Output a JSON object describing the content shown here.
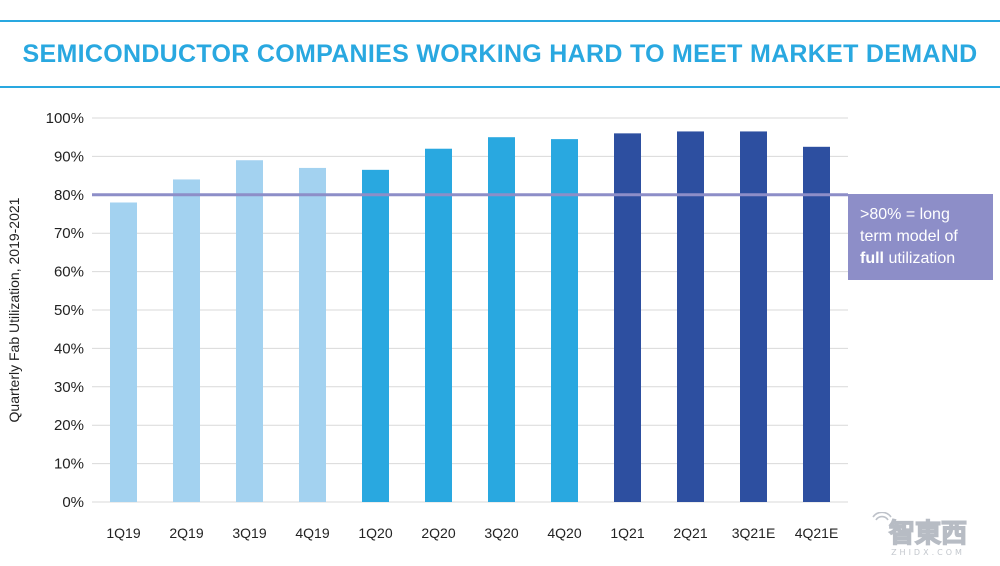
{
  "header": {
    "title": "SEMICONDUCTOR COMPANIES WORKING HARD TO MEET MARKET DEMAND"
  },
  "annotation": {
    "line1": ">80% = long",
    "line2": "term model of",
    "bold_word": "full",
    "rest": " utilization"
  },
  "watermark": {
    "logo_text": "智東西",
    "sub_text": "ZHIDX.COM"
  },
  "colors": {
    "title": "#29a8e0",
    "rule": "#29a8e0",
    "bar_2019": "#a3d2f0",
    "bar_2020": "#29a8e0",
    "bar_2021": "#2d4fa0",
    "reference_line": "#8d8ec8",
    "note_bg": "#8d8ec8",
    "grid": "#d9d9d9"
  },
  "chart_data": {
    "type": "bar",
    "title": "SEMICONDUCTOR COMPANIES WORKING HARD TO MEET MARKET DEMAND",
    "xlabel": "",
    "ylabel": "Quarterly Fab Utilization, 2019-2021",
    "ylim": [
      0,
      100
    ],
    "yticks": [
      0,
      10,
      20,
      30,
      40,
      50,
      60,
      70,
      80,
      90,
      100
    ],
    "ytick_labels": [
      "0%",
      "10%",
      "20%",
      "30%",
      "40%",
      "50%",
      "60%",
      "70%",
      "80%",
      "90%",
      "100%"
    ],
    "grid": true,
    "categories": [
      "1Q19",
      "2Q19",
      "3Q19",
      "4Q19",
      "1Q20",
      "2Q20",
      "3Q20",
      "4Q20",
      "1Q21",
      "2Q21",
      "3Q21E",
      "4Q21E"
    ],
    "values": [
      78,
      84,
      89,
      87,
      86.5,
      92,
      95,
      94.5,
      96,
      96.5,
      96.5,
      92.5
    ],
    "year_groups": [
      "2019",
      "2019",
      "2019",
      "2019",
      "2020",
      "2020",
      "2020",
      "2020",
      "2021",
      "2021",
      "2021",
      "2021"
    ],
    "reference_line": {
      "value": 80
    }
  }
}
